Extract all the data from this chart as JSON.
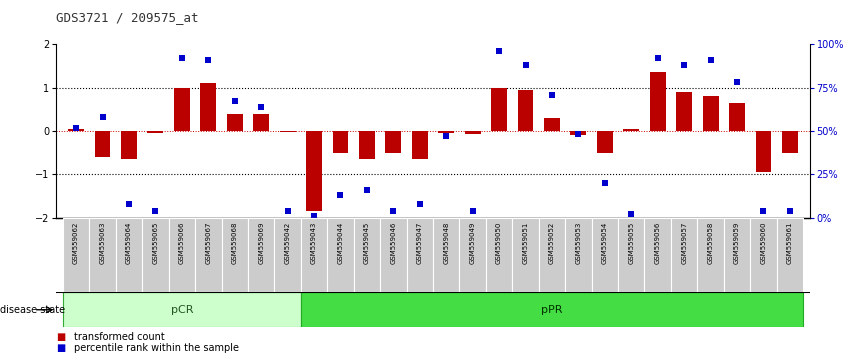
{
  "title": "GDS3721 / 209575_at",
  "samples": [
    "GSM559062",
    "GSM559063",
    "GSM559064",
    "GSM559065",
    "GSM559066",
    "GSM559067",
    "GSM559068",
    "GSM559069",
    "GSM559042",
    "GSM559043",
    "GSM559044",
    "GSM559045",
    "GSM559046",
    "GSM559047",
    "GSM559048",
    "GSM559049",
    "GSM559050",
    "GSM559051",
    "GSM559052",
    "GSM559053",
    "GSM559054",
    "GSM559055",
    "GSM559056",
    "GSM559057",
    "GSM559058",
    "GSM559059",
    "GSM559060",
    "GSM559061"
  ],
  "bar_values": [
    0.05,
    -0.6,
    -0.65,
    -0.05,
    1.0,
    1.1,
    0.4,
    0.4,
    -0.03,
    -1.85,
    -0.5,
    -0.65,
    -0.5,
    -0.65,
    -0.05,
    -0.08,
    1.0,
    0.95,
    0.3,
    -0.1,
    -0.5,
    0.05,
    1.35,
    0.9,
    0.8,
    0.65,
    -0.95,
    -0.5
  ],
  "percentile_values": [
    52,
    58,
    8,
    4,
    92,
    91,
    67,
    64,
    4,
    1,
    13,
    16,
    4,
    8,
    47,
    4,
    96,
    88,
    71,
    48,
    20,
    2,
    92,
    88,
    91,
    78,
    4,
    4
  ],
  "pCR_count": 9,
  "pPR_count": 19,
  "bar_color": "#bb0000",
  "percentile_color": "#0000cc",
  "background_color": "#ffffff",
  "ylim": [
    -2.0,
    2.0
  ],
  "y2lim": [
    0,
    100
  ],
  "yticks": [
    -2,
    -1,
    0,
    1,
    2
  ],
  "y2ticks": [
    0,
    25,
    50,
    75,
    100
  ],
  "y2ticklabels": [
    "0%",
    "25%",
    "50%",
    "75%",
    "100%"
  ],
  "right_label_color": "#0000cc",
  "dotted_line_color": "#000000",
  "zero_line_color": "#cc0000",
  "legend_bar_label": "transformed count",
  "legend_pct_label": "percentile rank within the sample",
  "disease_state_label": "disease state",
  "pCR_label": "pCR",
  "pPR_label": "pPR",
  "pCR_color": "#ccffcc",
  "pPR_color": "#44dd44",
  "xticklabel_bg": "#cccccc",
  "bar_width": 0.6
}
